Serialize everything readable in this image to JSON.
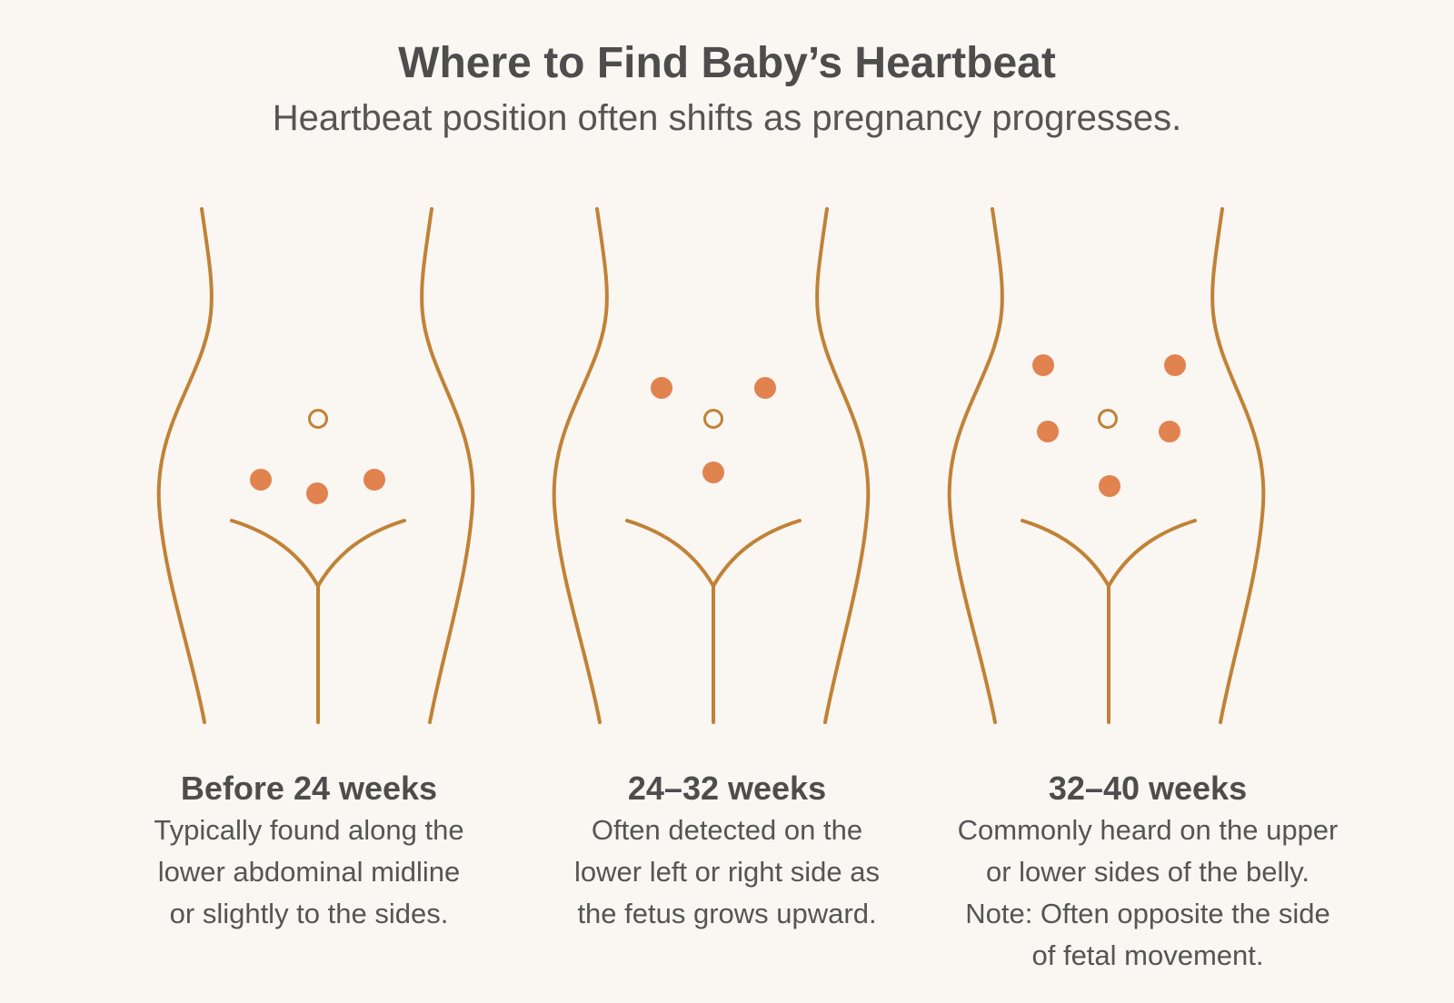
{
  "header": {
    "title": "Where to Find Baby’s Heartbeat",
    "subtitle": "Heartbeat position often shifts as pregnancy progresses."
  },
  "colors": {
    "outline": "#c08236",
    "dot": "#e0834f",
    "navel": "#c08236",
    "background": "#faf6f2",
    "text": "#4d4d4d"
  },
  "panels": [
    {
      "title": "Before 24 weeks",
      "lines": [
        "Typically found along the",
        "lower abdominal midline",
        "or slightly to the sides."
      ]
    },
    {
      "title": "24–32 weeks",
      "lines": [
        "Often detected on the",
        "lower left or right side as",
        "the fetus grows upward."
      ]
    },
    {
      "title": "32–40 weeks",
      "lines": [
        "Commonly heard on the upper",
        "or lower sides of the belly.",
        "Note: Often opposite the side",
        "of fetal movement."
      ]
    }
  ]
}
